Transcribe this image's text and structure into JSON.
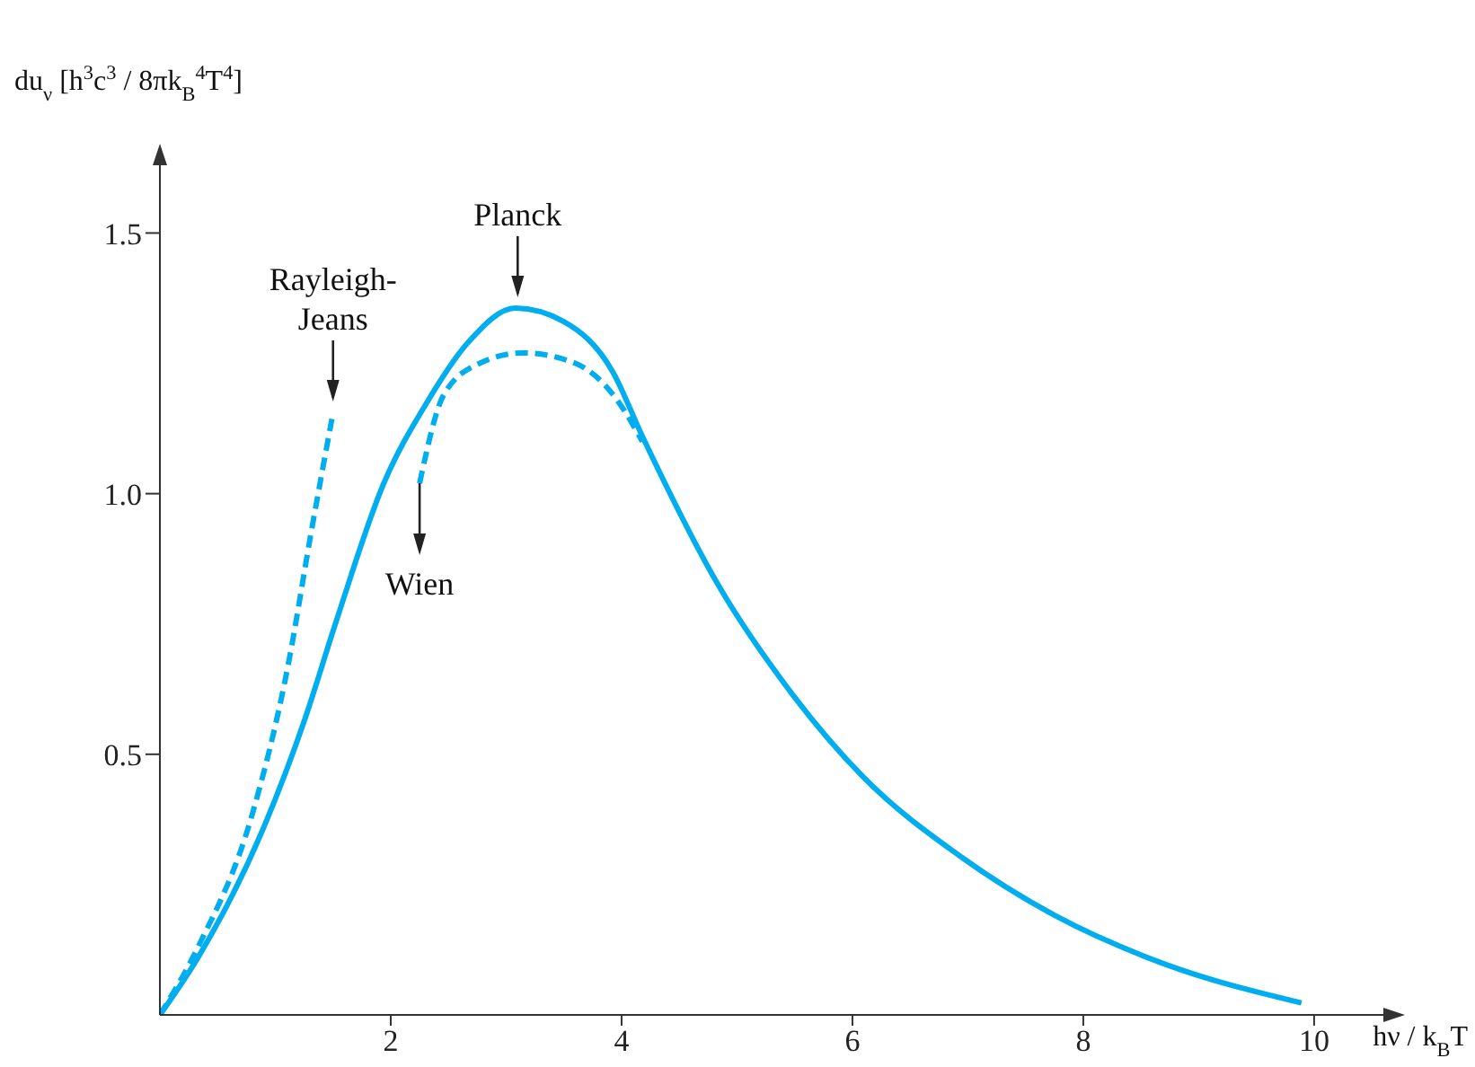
{
  "chart_data": {
    "type": "line",
    "xlabel": "hν / k$_{B}$T",
    "ylabel": "du$_{ν}$ [h$^{3}$c$^{3}$ / 8πk$_{B}$$^{4}$T$^{4}$]",
    "xlim": [
      0,
      10.6
    ],
    "ylim": [
      0,
      1.63
    ],
    "xticks": [
      2,
      4,
      6,
      8,
      10
    ],
    "yticks": [
      {
        "value": 0.5,
        "label": "0.5"
      },
      {
        "value": 1.0,
        "label": "1.0"
      },
      {
        "value": 1.5,
        "label": "1.5"
      }
    ],
    "grid": false,
    "marker": "none",
    "series": [
      {
        "color": "#00aeef",
        "line_style": "solid",
        "x": [
          0,
          0.33,
          0.9,
          1.26,
          1.52,
          1.94,
          2.3,
          2.67,
          3.08,
          3.5,
          3.92,
          4.18,
          4.85,
          5.48,
          6.1,
          6.93,
          7.76,
          8.7,
          9.89
        ],
        "values": [
          0,
          0.11,
          0.36,
          0.57,
          0.75,
          1.02,
          1.17,
          1.29,
          1.356,
          1.33,
          1.235,
          1.11,
          0.82,
          0.615,
          0.455,
          0.305,
          0.19,
          0.098,
          0.023
        ]
      },
      {
        "color": "#00aeef",
        "line_style": "dashed",
        "x": [
          0,
          0.33,
          0.8,
          1.11,
          1.31,
          1.5
        ],
        "values": [
          0,
          0.13,
          0.385,
          0.67,
          0.925,
          1.155
        ]
      },
      {
        "color": "#00aeef",
        "line_style": "dashed",
        "x": [
          2.25,
          2.46,
          2.77,
          3.14,
          3.6,
          3.96,
          4.18
        ],
        "values": [
          1.02,
          1.19,
          1.25,
          1.27,
          1.25,
          1.18,
          1.1
        ]
      }
    ],
    "annotations": [
      {
        "text": "Planck",
        "x": 3.1,
        "y": 1.37
      },
      {
        "text": "Rayleigh-Jeans",
        "x": 1.5,
        "y": 1.17
      },
      {
        "text": "Wien",
        "x": 2.25,
        "y": 1.02
      }
    ]
  }
}
